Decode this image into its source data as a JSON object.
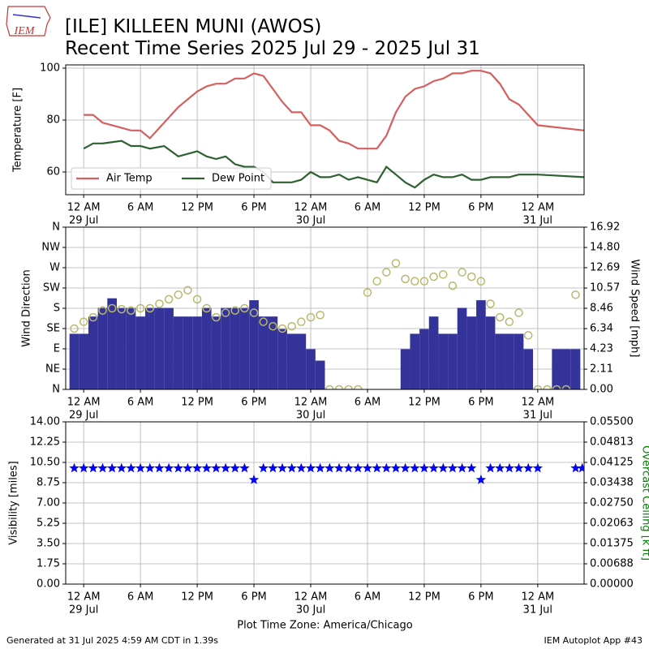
{
  "header": {
    "logo": "IEM",
    "title": "[ILE] KILLEEN MUNI (AWOS)",
    "subtitle": "Recent Time Series 2025 Jul 29 - 2025 Jul 31"
  },
  "footer": {
    "left": "Generated at 31 Jul 2025 4:59 AM CDT in 1.39s",
    "right": "IEM Autoplot App #43"
  },
  "chart_data": [
    {
      "type": "line",
      "ylabel": "Temperature [F]",
      "grid": true,
      "legend": "lower left",
      "xlim": [
        -1.9,
        52.9
      ],
      "xticks": [
        {
          "value": 0,
          "label": "12 AM",
          "sublabel": "29 Jul"
        },
        {
          "value": 6,
          "label": "6 AM"
        },
        {
          "value": 12,
          "label": "12 PM"
        },
        {
          "value": 18,
          "label": "6 PM"
        },
        {
          "value": 24,
          "label": "12 AM",
          "sublabel": "30 Jul"
        },
        {
          "value": 30,
          "label": "6 AM"
        },
        {
          "value": 36,
          "label": "12 PM"
        },
        {
          "value": 42,
          "label": "6 PM"
        },
        {
          "value": 48,
          "label": "12 AM",
          "sublabel": "31 Jul"
        }
      ],
      "ylim": [
        51.25,
        101.25
      ],
      "yticks": [
        60,
        80,
        100
      ],
      "x": [
        0,
        1,
        2,
        4,
        5,
        6,
        7,
        8.5,
        10,
        12,
        13,
        14,
        15,
        16,
        17,
        18,
        19,
        20,
        21,
        22,
        23,
        24,
        25,
        26,
        27,
        28,
        29,
        31,
        32,
        33,
        34,
        35,
        36,
        37,
        38,
        39,
        40,
        41,
        42,
        43,
        44,
        45,
        46,
        48,
        52.9
      ],
      "series": [
        {
          "name": "Air Temp",
          "color": "#d65f5f",
          "values": [
            82,
            82,
            79,
            77,
            76,
            76,
            73,
            79,
            85,
            91,
            93,
            94,
            94,
            96,
            96,
            98,
            97,
            92,
            87,
            83,
            83,
            78,
            78,
            76,
            72,
            71,
            69,
            69,
            74,
            83,
            89,
            92,
            93,
            95,
            96,
            98,
            98,
            99,
            99,
            98,
            94,
            88,
            86,
            78,
            76
          ]
        },
        {
          "name": "Dew Point",
          "color": "#2e6130",
          "values": [
            69,
            71,
            71,
            72,
            70,
            70,
            69,
            70,
            66,
            68,
            66,
            65,
            66,
            63,
            62,
            62,
            60,
            56,
            56,
            56,
            57,
            60,
            58,
            58,
            59,
            57,
            58,
            56,
            62,
            59,
            56,
            54,
            57,
            59,
            58,
            58,
            59,
            57,
            57,
            58,
            58,
            58,
            59,
            59,
            58
          ]
        }
      ]
    },
    {
      "type": "combo",
      "ylabel": "Wind Direction",
      "y2label": "Wind Speed [mph]",
      "grid": true,
      "xlim": [
        -1.9,
        52.9
      ],
      "xticks": [
        {
          "value": 0,
          "label": "12 AM",
          "sublabel": "29 Jul"
        },
        {
          "value": 6,
          "label": "6 AM"
        },
        {
          "value": 12,
          "label": "12 PM"
        },
        {
          "value": 18,
          "label": "6 PM"
        },
        {
          "value": 24,
          "label": "12 AM",
          "sublabel": "30 Jul"
        },
        {
          "value": 30,
          "label": "6 AM"
        },
        {
          "value": 36,
          "label": "12 PM"
        },
        {
          "value": 42,
          "label": "6 PM"
        },
        {
          "value": 48,
          "label": "12 AM",
          "sublabel": "31 Jul"
        }
      ],
      "ylim": [
        0,
        360
      ],
      "yticks": [
        {
          "value": 0,
          "label": "N"
        },
        {
          "value": 45,
          "label": "NE"
        },
        {
          "value": 90,
          "label": "E"
        },
        {
          "value": 135,
          "label": "SE"
        },
        {
          "value": 180,
          "label": "S"
        },
        {
          "value": 225,
          "label": "SW"
        },
        {
          "value": 270,
          "label": "W"
        },
        {
          "value": 315,
          "label": "NW"
        },
        {
          "value": 360,
          "label": "N"
        }
      ],
      "y2lim": [
        0,
        16.92
      ],
      "y2ticks": [
        {
          "value": 0,
          "label": "0.00"
        },
        {
          "value": 2.11,
          "label": "2.11"
        },
        {
          "value": 4.23,
          "label": "4.23"
        },
        {
          "value": 6.34,
          "label": "6.34"
        },
        {
          "value": 8.46,
          "label": "8.46"
        },
        {
          "value": 10.57,
          "label": "10.57"
        },
        {
          "value": 12.69,
          "label": "12.69"
        },
        {
          "value": 14.8,
          "label": "14.80"
        },
        {
          "value": 16.92,
          "label": "16.92"
        }
      ],
      "x": [
        -1,
        0,
        1,
        2,
        3,
        4,
        5,
        6,
        7,
        8,
        9,
        10,
        11,
        12,
        13,
        14,
        15,
        16,
        17,
        18,
        19,
        20,
        21,
        22,
        23,
        24,
        25,
        26,
        27,
        28,
        29,
        30,
        31,
        32,
        33,
        34,
        35,
        36,
        37,
        38,
        39,
        40,
        41,
        42,
        43,
        44,
        45,
        46,
        47,
        48,
        49,
        50,
        51,
        52
      ],
      "series": [
        {
          "style": "bar",
          "axis": "y2",
          "color": "#333399",
          "values": [
            5.8,
            5.8,
            7.6,
            8.5,
            9.5,
            8.5,
            8.5,
            7.6,
            8.5,
            8.5,
            8.5,
            7.6,
            7.6,
            7.6,
            8.5,
            7.6,
            8.5,
            8.5,
            8.5,
            9.3,
            7.6,
            7.6,
            6.3,
            5.8,
            5.8,
            4.2,
            3.0,
            0,
            0,
            0,
            0,
            0,
            0,
            0,
            0,
            4.2,
            5.8,
            6.3,
            7.6,
            5.8,
            5.8,
            8.5,
            7.6,
            9.3,
            7.6,
            5.8,
            5.8,
            5.8,
            4.2,
            0,
            0,
            4.2,
            4.2,
            4.2
          ]
        },
        {
          "style": "scatter",
          "color": "#b8b86c",
          "values": [
            135,
            150,
            160,
            175,
            180,
            178,
            175,
            180,
            180,
            190,
            200,
            210,
            220,
            200,
            180,
            160,
            170,
            175,
            180,
            170,
            150,
            140,
            135,
            140,
            150,
            160,
            165,
            0,
            0,
            0,
            0,
            215,
            240,
            260,
            280,
            245,
            240,
            240,
            250,
            255,
            230,
            260,
            250,
            240,
            190,
            160,
            150,
            170,
            120,
            0,
            0,
            0,
            0,
            210
          ]
        }
      ]
    },
    {
      "type": "scatter",
      "ylabel": "Visibility [miles]",
      "y2label": "Overcast Ceiling [k ft]",
      "xlabel": "Plot Time Zone: America/Chicago",
      "grid": true,
      "xlim": [
        -1.9,
        52.9
      ],
      "xticks": [
        {
          "value": 0,
          "label": "12 AM",
          "sublabel": "29 Jul"
        },
        {
          "value": 6,
          "label": "6 AM"
        },
        {
          "value": 12,
          "label": "12 PM"
        },
        {
          "value": 18,
          "label": "6 PM"
        },
        {
          "value": 24,
          "label": "12 AM",
          "sublabel": "30 Jul"
        },
        {
          "value": 30,
          "label": "6 AM"
        },
        {
          "value": 36,
          "label": "12 PM"
        },
        {
          "value": 42,
          "label": "6 PM"
        },
        {
          "value": 48,
          "label": "12 AM",
          "sublabel": "31 Jul"
        }
      ],
      "ylim": [
        0,
        14
      ],
      "yticks": [
        {
          "value": 0,
          "label": "0.00"
        },
        {
          "value": 1.75,
          "label": "1.75"
        },
        {
          "value": 3.5,
          "label": "3.50"
        },
        {
          "value": 5.25,
          "label": "5.25"
        },
        {
          "value": 7,
          "label": "7.00"
        },
        {
          "value": 8.75,
          "label": "8.75"
        },
        {
          "value": 10.5,
          "label": "10.50"
        },
        {
          "value": 12.25,
          "label": "12.25"
        },
        {
          "value": 14,
          "label": "14.00"
        }
      ],
      "y2lim": [
        0,
        0.055
      ],
      "y2ticks": [
        {
          "value": 0,
          "label": "0.00000"
        },
        {
          "value": 0.00688,
          "label": "0.00688"
        },
        {
          "value": 0.01375,
          "label": "0.01375"
        },
        {
          "value": 0.02063,
          "label": "0.02063"
        },
        {
          "value": 0.0275,
          "label": "0.02750"
        },
        {
          "value": 0.03438,
          "label": "0.03438"
        },
        {
          "value": 0.04125,
          "label": "0.04125"
        },
        {
          "value": 0.04813,
          "label": "0.04813"
        },
        {
          "value": 0.055,
          "label": "0.05500"
        }
      ],
      "y2color": "#008000",
      "x": [
        -1,
        0,
        1,
        2,
        3,
        4,
        5,
        6,
        7,
        8,
        9,
        10,
        11,
        12,
        13,
        14,
        15,
        16,
        17,
        18,
        19,
        20,
        21,
        22,
        23,
        24,
        25,
        26,
        27,
        28,
        29,
        30,
        31,
        32,
        33,
        34,
        35,
        36,
        37,
        38,
        39,
        40,
        41,
        42,
        43,
        44,
        45,
        46,
        47,
        48,
        50,
        52,
        52.7
      ],
      "series": [
        {
          "style": "scatter",
          "marker": "star",
          "color": "#0000ff",
          "values": [
            10,
            10,
            10,
            10,
            10,
            10,
            10,
            10,
            10,
            10,
            10,
            10,
            10,
            10,
            10,
            10,
            10,
            10,
            10,
            9,
            10,
            10,
            10,
            10,
            10,
            10,
            10,
            10,
            10,
            10,
            10,
            10,
            10,
            10,
            10,
            10,
            10,
            10,
            10,
            10,
            10,
            10,
            10,
            9,
            10,
            10,
            10,
            10,
            10,
            10,
            null,
            10,
            10
          ]
        }
      ]
    }
  ]
}
